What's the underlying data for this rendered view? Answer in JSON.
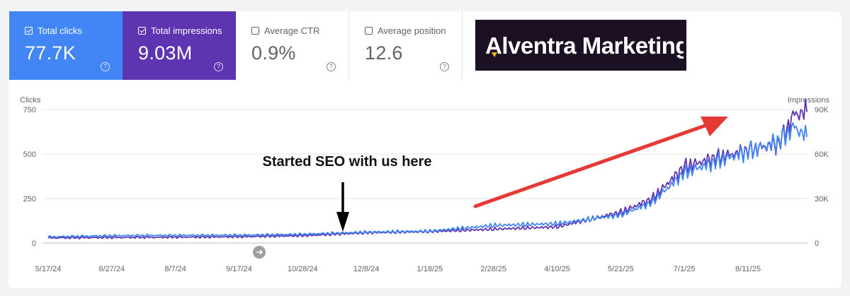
{
  "cards": [
    {
      "label": "Total clicks",
      "value": "77.7K",
      "checked": true,
      "color": "#4285f4"
    },
    {
      "label": "Total impressions",
      "value": "9.03M",
      "checked": true,
      "color": "#5e35b1"
    },
    {
      "label": "Average CTR",
      "value": "0.9%",
      "checked": false
    },
    {
      "label": "Average position",
      "value": "12.6",
      "checked": false
    }
  ],
  "help_icon": "?",
  "logo": {
    "text": "Alventra Marketing",
    "accent": "#f2b705"
  },
  "annotation": "Started SEO with us here",
  "chart_data": {
    "type": "line",
    "x_tick_labels": [
      "5/17/24",
      "6/27/24",
      "8/7/24",
      "9/17/24",
      "10/28/24",
      "12/8/24",
      "1/18/25",
      "2/28/25",
      "4/10/25",
      "5/21/25",
      "7/1/25",
      "8/11/25"
    ],
    "y_left": {
      "label": "Clicks",
      "ticks": [
        "750",
        "500",
        "250",
        "0"
      ],
      "range": [
        0,
        750
      ]
    },
    "y_right": {
      "label": "Impressions",
      "ticks": [
        "90K",
        "60K",
        "30K",
        "0"
      ],
      "range": [
        0,
        90000
      ]
    },
    "grid": true,
    "series": [
      {
        "name": "Clicks",
        "axis": "left",
        "color": "#4285f4",
        "x": [
          "5/17/24",
          "6/27/24",
          "8/7/24",
          "9/17/24",
          "10/28/24",
          "12/8/24",
          "1/18/25",
          "2/28/25",
          "4/10/25",
          "5/21/25",
          "6/10/25",
          "7/1/25",
          "7/21/25",
          "8/11/25",
          "8/31/25",
          "9/10/25",
          "9/18/25"
        ],
        "y": [
          35,
          42,
          44,
          45,
          50,
          62,
          68,
          100,
          110,
          160,
          230,
          400,
          460,
          520,
          580,
          660,
          600
        ]
      },
      {
        "name": "Impressions",
        "axis": "right",
        "color": "#5e35b1",
        "x": [
          "5/17/24",
          "6/27/24",
          "8/7/24",
          "9/17/24",
          "10/28/24",
          "12/8/24",
          "1/18/25",
          "2/28/25",
          "4/10/25",
          "5/21/25",
          "6/10/25",
          "7/1/25",
          "7/21/25",
          "8/11/25",
          "8/31/25",
          "9/10/25",
          "9/18/25"
        ],
        "y": [
          3500,
          3800,
          4000,
          4300,
          5000,
          7000,
          7800,
          9500,
          11000,
          21000,
          30000,
          52000,
          58000,
          63000,
          68000,
          88000,
          89000
        ]
      }
    ],
    "annotation_arrow_color": "#000000",
    "trend_arrow_color": "#e53935"
  }
}
